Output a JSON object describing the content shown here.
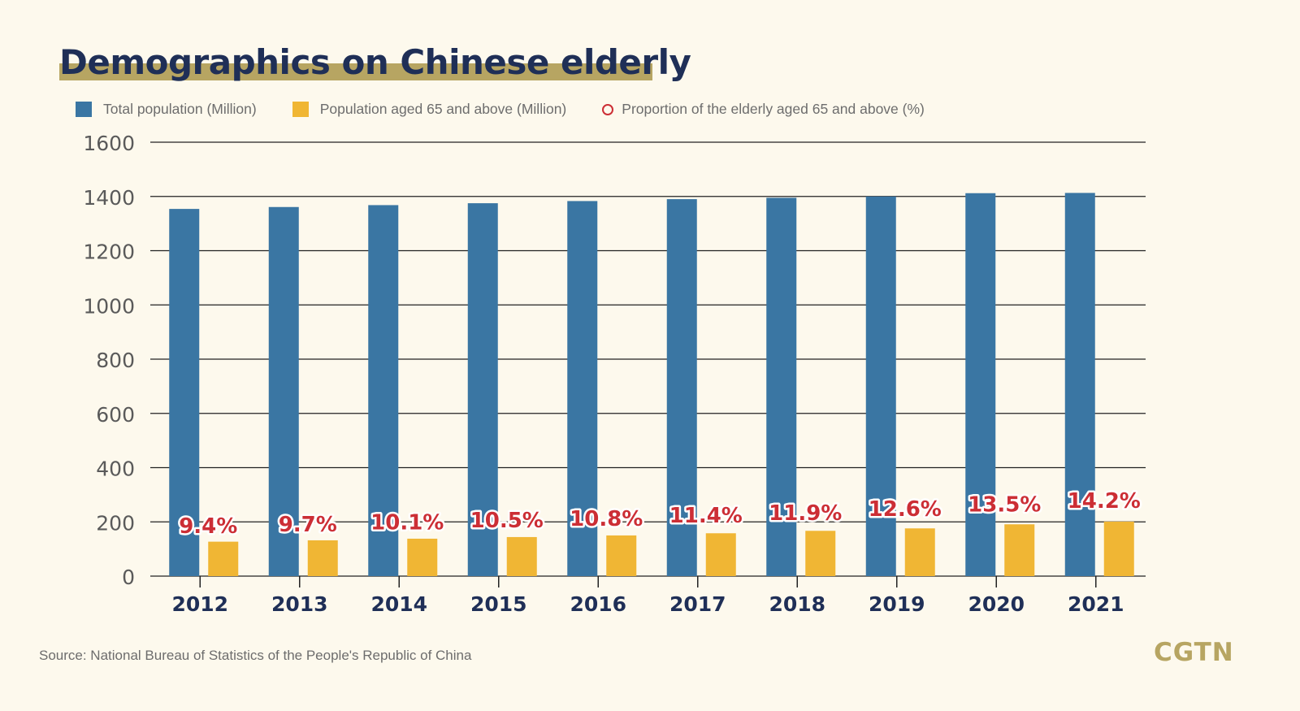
{
  "title": "Demographics on Chinese elderly",
  "source": "Source: National Bureau of Statistics of the People's Republic of China",
  "brand": "CGTN",
  "colors": {
    "total": "#3a76a3",
    "elderly": "#f0b634",
    "proportion_label": "#cc2e35",
    "title": "#1f2f57",
    "title_highlight": "#b7a562",
    "background": "#fdf9ed"
  },
  "chart_data": {
    "type": "bar",
    "categories": [
      "2012",
      "2013",
      "2014",
      "2015",
      "2016",
      "2017",
      "2018",
      "2019",
      "2020",
      "2021"
    ],
    "series": [
      {
        "name": "Total population (Million)",
        "values": [
          1354,
          1361,
          1368,
          1375,
          1383,
          1390,
          1395,
          1400,
          1412,
          1413
        ]
      },
      {
        "name": "Population aged 65 and above (Million)",
        "values": [
          127,
          132,
          138,
          144,
          150,
          158,
          167,
          176,
          191,
          201
        ]
      },
      {
        "name": "Proportion of the elderly aged 65 and above (%)",
        "values": [
          9.4,
          9.7,
          10.1,
          10.5,
          10.8,
          11.4,
          11.9,
          12.6,
          13.5,
          14.2
        ],
        "labels": [
          "9.4%",
          "9.7%",
          "10.1%",
          "10.5%",
          "10.8%",
          "11.4%",
          "11.9%",
          "12.6%",
          "13.5%",
          "14.2%"
        ]
      }
    ],
    "ylim": [
      0,
      1600
    ],
    "yticks": [
      "0",
      "200",
      "400",
      "600",
      "800",
      "1000",
      "1200",
      "1400",
      "1600"
    ],
    "grid": true,
    "legend_position": "top"
  }
}
